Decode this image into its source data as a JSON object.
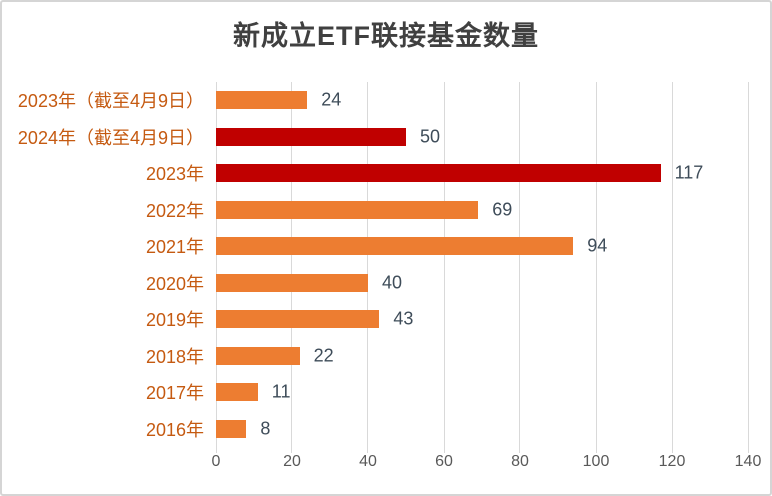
{
  "chart_data": {
    "type": "bar",
    "orientation": "horizontal",
    "title": "新成立ETF联接基金数量",
    "categories": [
      "2023年（截至4月9日）",
      "2024年（截至4月9日）",
      "2023年",
      "2022年",
      "2021年",
      "2020年",
      "2019年",
      "2018年",
      "2017年",
      "2016年"
    ],
    "values": [
      24,
      50,
      117,
      69,
      94,
      40,
      43,
      22,
      11,
      8
    ],
    "bar_colors": [
      "#ED7D31",
      "#C00000",
      "#C00000",
      "#ED7D31",
      "#ED7D31",
      "#ED7D31",
      "#ED7D31",
      "#ED7D31",
      "#ED7D31",
      "#ED7D31"
    ],
    "xlim": [
      0,
      140
    ],
    "xticks": [
      0,
      20,
      40,
      60,
      80,
      100,
      120,
      140
    ],
    "grid": "vertical-only",
    "legend": "none",
    "styles": {
      "title_color": "#404040",
      "category_label_color": "#C55A11",
      "value_label_color": "#3E4C59",
      "axis_label_color": "#595959",
      "gridline_color": "#D9D9D9",
      "bar_color_default": "#ED7D31",
      "bar_color_highlight": "#C00000",
      "card_border_color": "#D5D5D5",
      "background": "#FFFFFF"
    }
  }
}
